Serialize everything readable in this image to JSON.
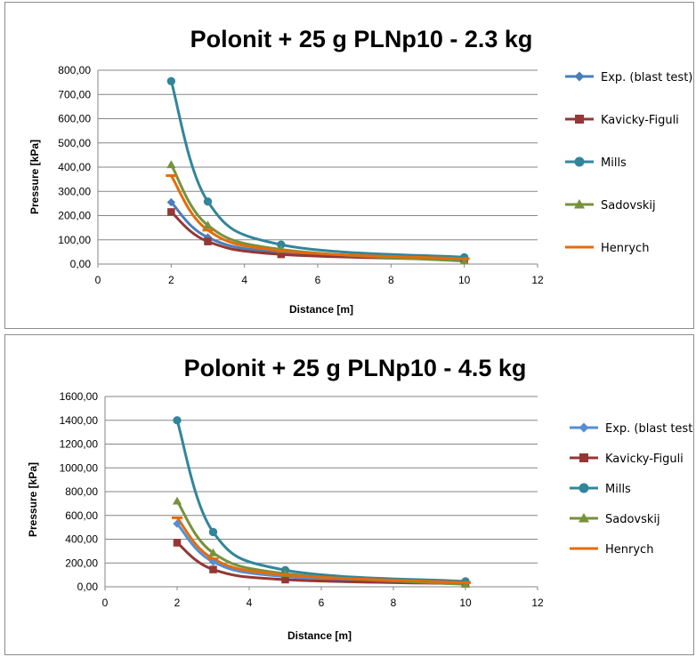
{
  "chart_data": [
    {
      "type": "line",
      "title": "Polonit + 25 g PLNp10 - 2.3 kg",
      "xlabel": "Distance [m]",
      "ylabel": "Pressure [kPa]",
      "xlim": [
        0,
        12
      ],
      "ylim": [
        0,
        800
      ],
      "x_ticks": [
        "0",
        "2",
        "4",
        "6",
        "8",
        "10",
        "12"
      ],
      "y_ticks": [
        "0,00",
        "100,00",
        "200,00",
        "300,00",
        "400,00",
        "500,00",
        "600,00",
        "700,00",
        "800,00"
      ],
      "grid": "horizontal",
      "legend": "right",
      "x": [
        2,
        3,
        5,
        10
      ],
      "series": [
        {
          "name": "Exp. (blast test)",
          "color": "#4a7ebb",
          "marker": "diamond",
          "values": [
            255,
            110,
            48,
            20
          ]
        },
        {
          "name": "Kavicky-Figuli",
          "color": "#953735",
          "marker": "square",
          "values": [
            215,
            93,
            40,
            18
          ]
        },
        {
          "name": "Mills",
          "color": "#31859c",
          "marker": "circle",
          "values": [
            755,
            258,
            80,
            28
          ]
        },
        {
          "name": "Sadovskij",
          "color": "#76923c",
          "marker": "triangle",
          "values": [
            410,
            160,
            60,
            12
          ]
        },
        {
          "name": "Henrych",
          "color": "#e46c0a",
          "marker": "dash",
          "values": [
            365,
            140,
            55,
            22
          ]
        }
      ]
    },
    {
      "type": "line",
      "title": "Polonit + 25 g PLNp10 - 4.5 kg",
      "xlabel": "Distance [m]",
      "ylabel": "Pressure [kPa]",
      "xlim": [
        0,
        12
      ],
      "ylim": [
        0,
        1600
      ],
      "x_ticks": [
        "0",
        "2",
        "4",
        "6",
        "8",
        "10",
        "12"
      ],
      "y_ticks": [
        "0,00",
        "200,00",
        "400,00",
        "600,00",
        "800,00",
        "1000,00",
        "1200,00",
        "1400,00",
        "1600,00"
      ],
      "grid": "horizontal",
      "legend": "right",
      "x": [
        2,
        3,
        5,
        10
      ],
      "series": [
        {
          "name": "Exp. (blast test)",
          "color": "#558ed5",
          "marker": "diamond",
          "values": [
            530,
            210,
            85,
            30
          ]
        },
        {
          "name": "Kavicky-Figuli",
          "color": "#953735",
          "marker": "square",
          "values": [
            370,
            145,
            60,
            25
          ]
        },
        {
          "name": "Mills",
          "color": "#31859c",
          "marker": "circle",
          "values": [
            1400,
            460,
            140,
            45
          ]
        },
        {
          "name": "Sadovskij",
          "color": "#76923c",
          "marker": "triangle",
          "values": [
            720,
            285,
            110,
            20
          ]
        },
        {
          "name": "Henrych",
          "color": "#e46c0a",
          "marker": "dash",
          "values": [
            580,
            235,
            100,
            35
          ]
        }
      ]
    }
  ]
}
